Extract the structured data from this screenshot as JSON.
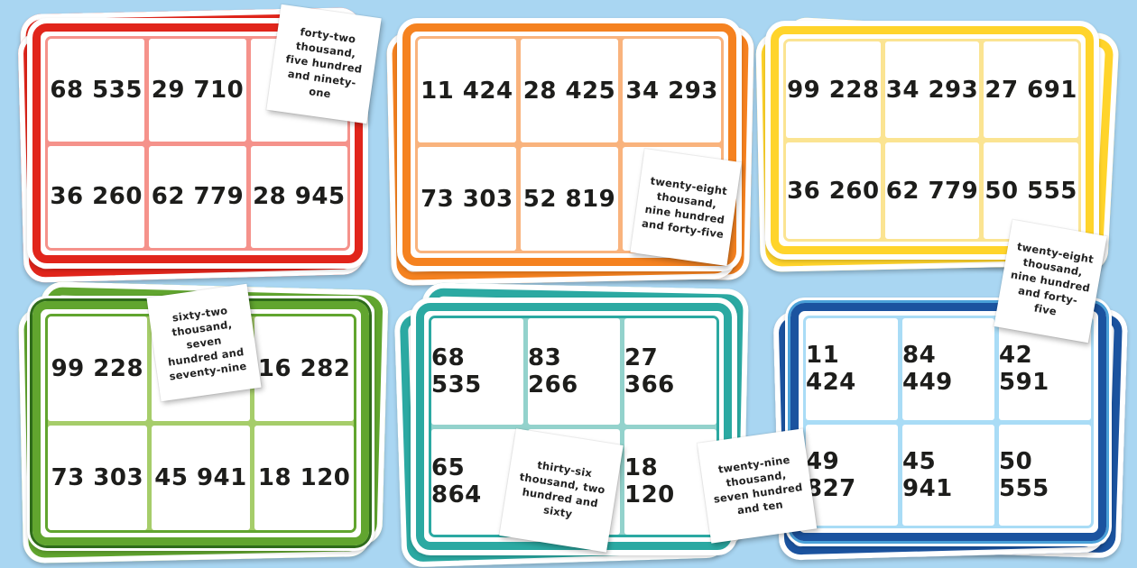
{
  "canvas": {
    "background_color": "#a9d6f2"
  },
  "cards": [
    {
      "name": "red",
      "colors": {
        "main": "#e1251b",
        "grid": "#f5928b",
        "ring": "#f5928b",
        "edge": "transparent"
      },
      "cells": [
        "68 535",
        "29 710",
        "",
        "36 260",
        "62 779",
        "28 945"
      ]
    },
    {
      "name": "orange",
      "colors": {
        "main": "#f58220",
        "grid": "#f9b37d",
        "ring": "#f9b37d",
        "edge": "transparent"
      },
      "cells": [
        "11 424",
        "28 425",
        "34 293",
        "73 303",
        "52 819",
        ""
      ]
    },
    {
      "name": "yellow",
      "colors": {
        "main": "#ffd42b",
        "grid": "#fbe492",
        "ring": "#fbe492",
        "edge": "transparent"
      },
      "cells": [
        "99 228",
        "34 293",
        "27 691",
        "36 260",
        "62 779",
        "50 555"
      ]
    },
    {
      "name": "green",
      "colors": {
        "main": "#61a52f",
        "grid": "#a6cd6a",
        "ring": "#61a52f",
        "edge": "#2e6b1a"
      },
      "cells": [
        "99 228",
        "",
        "16 282",
        "73 303",
        "45 941",
        "18 120"
      ]
    },
    {
      "name": "teal",
      "colors": {
        "main": "#2ba9a2",
        "grid": "#93d2cc",
        "ring": "#2ba9a2",
        "edge": "transparent"
      },
      "cells": [
        "68 535",
        "83 266",
        "27 366",
        "65 864",
        "",
        "18 120"
      ]
    },
    {
      "name": "blue",
      "colors": {
        "main": "#1b539f",
        "grid": "#a9dcf6",
        "ring": "#a9dcf6",
        "edge": "#4aa0d8"
      },
      "cells": [
        "11 424",
        "84 449",
        "42 591",
        "49 827",
        "45 941",
        "50 555"
      ]
    }
  ],
  "word_cards": [
    {
      "text": "forty-two thousand, five hundred and ninety-one"
    },
    {
      "text": "twenty-eight thousand, nine hundred and forty-five"
    },
    {
      "text": "twenty-eight thousand, nine hundred and forty-five"
    },
    {
      "text": "sixty-two thousand, seven hundred and seventy-nine"
    },
    {
      "text": "thirty-six thousand, two hundred and sixty"
    },
    {
      "text": "twenty-nine thousand, seven hundred and ten"
    }
  ]
}
